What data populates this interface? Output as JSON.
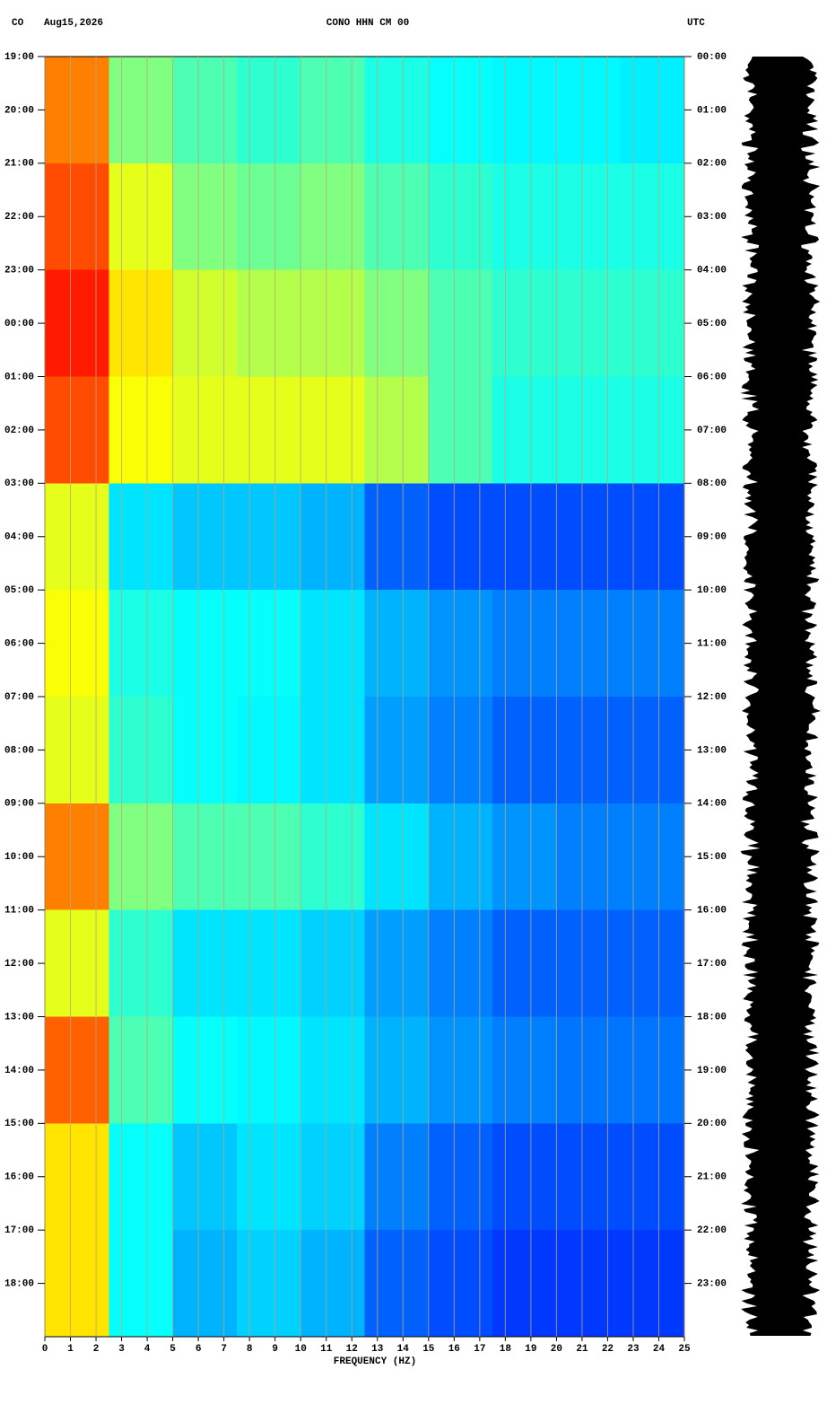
{
  "chart_data": {
    "type": "spectrogram",
    "network": "CO",
    "date": "Aug15,2026",
    "title": "CONO HHN CM 00",
    "right_timezone": "UTC",
    "xlabel": "FREQUENCY (HZ)",
    "xlim": [
      0,
      25
    ],
    "xticks": [
      0,
      1,
      2,
      3,
      4,
      5,
      6,
      7,
      8,
      9,
      10,
      11,
      12,
      13,
      14,
      15,
      16,
      17,
      18,
      19,
      20,
      21,
      22,
      23,
      24,
      25
    ],
    "ylim": [
      0,
      24
    ],
    "yticks": [
      {
        "value": 0,
        "label": "19:00"
      },
      {
        "value": 1,
        "label": "20:00"
      },
      {
        "value": 2,
        "label": "21:00"
      },
      {
        "value": 3,
        "label": "22:00"
      },
      {
        "value": 4,
        "label": "23:00"
      },
      {
        "value": 5,
        "label": "00:00"
      },
      {
        "value": 6,
        "label": "01:00"
      },
      {
        "value": 7,
        "label": "02:00"
      },
      {
        "value": 8,
        "label": "03:00"
      },
      {
        "value": 9,
        "label": "04:00"
      },
      {
        "value": 10,
        "label": "05:00"
      },
      {
        "value": 11,
        "label": "06:00"
      },
      {
        "value": 12,
        "label": "07:00"
      },
      {
        "value": 13,
        "label": "08:00"
      },
      {
        "value": 14,
        "label": "09:00"
      },
      {
        "value": 15,
        "label": "10:00"
      },
      {
        "value": 16,
        "label": "11:00"
      },
      {
        "value": 17,
        "label": "12:00"
      },
      {
        "value": 18,
        "label": "13:00"
      },
      {
        "value": 19,
        "label": "14:00"
      },
      {
        "value": 20,
        "label": "15:00"
      },
      {
        "value": 21,
        "label": "16:00"
      },
      {
        "value": 22,
        "label": "17:00"
      },
      {
        "value": 23,
        "label": "18:00"
      }
    ],
    "y2lim": [
      0,
      24
    ],
    "y2ticks": [
      {
        "value": 0,
        "label": "00:00"
      },
      {
        "value": 1,
        "label": "01:00"
      },
      {
        "value": 2,
        "label": "02:00"
      },
      {
        "value": 3,
        "label": "03:00"
      },
      {
        "value": 4,
        "label": "04:00"
      },
      {
        "value": 5,
        "label": "05:00"
      },
      {
        "value": 6,
        "label": "06:00"
      },
      {
        "value": 7,
        "label": "07:00"
      },
      {
        "value": 8,
        "label": "08:00"
      },
      {
        "value": 9,
        "label": "09:00"
      },
      {
        "value": 10,
        "label": "10:00"
      },
      {
        "value": 11,
        "label": "11:00"
      },
      {
        "value": 12,
        "label": "12:00"
      },
      {
        "value": 13,
        "label": "13:00"
      },
      {
        "value": 14,
        "label": "14:00"
      },
      {
        "value": 15,
        "label": "15:00"
      },
      {
        "value": 16,
        "label": "16:00"
      },
      {
        "value": 17,
        "label": "17:00"
      },
      {
        "value": 18,
        "label": "18:00"
      },
      {
        "value": 19,
        "label": "19:00"
      },
      {
        "value": 20,
        "label": "20:00"
      },
      {
        "value": 21,
        "label": "21:00"
      },
      {
        "value": 22,
        "label": "22:00"
      },
      {
        "value": 23,
        "label": "23:00"
      }
    ],
    "grid": true,
    "freq_bins": [
      0,
      2.5,
      5,
      7.5,
      10,
      12.5,
      15,
      17.5,
      20,
      22.5,
      25
    ],
    "time_bins": [
      0,
      2,
      4,
      6,
      8,
      10,
      12,
      14,
      16,
      18,
      20,
      22,
      24
    ],
    "intensity": [
      [
        0.75,
        0.5,
        0.45,
        0.42,
        0.45,
        0.4,
        0.38,
        0.37,
        0.37,
        0.36
      ],
      [
        0.8,
        0.6,
        0.5,
        0.48,
        0.5,
        0.45,
        0.42,
        0.4,
        0.4,
        0.4
      ],
      [
        0.85,
        0.65,
        0.58,
        0.55,
        0.55,
        0.5,
        0.45,
        0.42,
        0.42,
        0.42
      ],
      [
        0.8,
        0.62,
        0.6,
        0.6,
        0.6,
        0.55,
        0.45,
        0.4,
        0.4,
        0.4
      ],
      [
        0.6,
        0.35,
        0.32,
        0.32,
        0.3,
        0.22,
        0.2,
        0.2,
        0.2,
        0.2
      ],
      [
        0.62,
        0.4,
        0.38,
        0.38,
        0.35,
        0.3,
        0.27,
        0.25,
        0.25,
        0.25
      ],
      [
        0.6,
        0.42,
        0.38,
        0.37,
        0.35,
        0.28,
        0.25,
        0.22,
        0.22,
        0.22
      ],
      [
        0.75,
        0.5,
        0.45,
        0.45,
        0.42,
        0.35,
        0.3,
        0.27,
        0.25,
        0.25
      ],
      [
        0.6,
        0.42,
        0.35,
        0.35,
        0.33,
        0.28,
        0.25,
        0.22,
        0.22,
        0.22
      ],
      [
        0.78,
        0.45,
        0.38,
        0.37,
        0.35,
        0.3,
        0.27,
        0.25,
        0.24,
        0.24
      ],
      [
        0.65,
        0.38,
        0.32,
        0.35,
        0.33,
        0.25,
        0.22,
        0.2,
        0.2,
        0.2
      ],
      [
        0.65,
        0.38,
        0.3,
        0.33,
        0.3,
        0.22,
        0.2,
        0.18,
        0.18,
        0.18
      ]
    ]
  }
}
